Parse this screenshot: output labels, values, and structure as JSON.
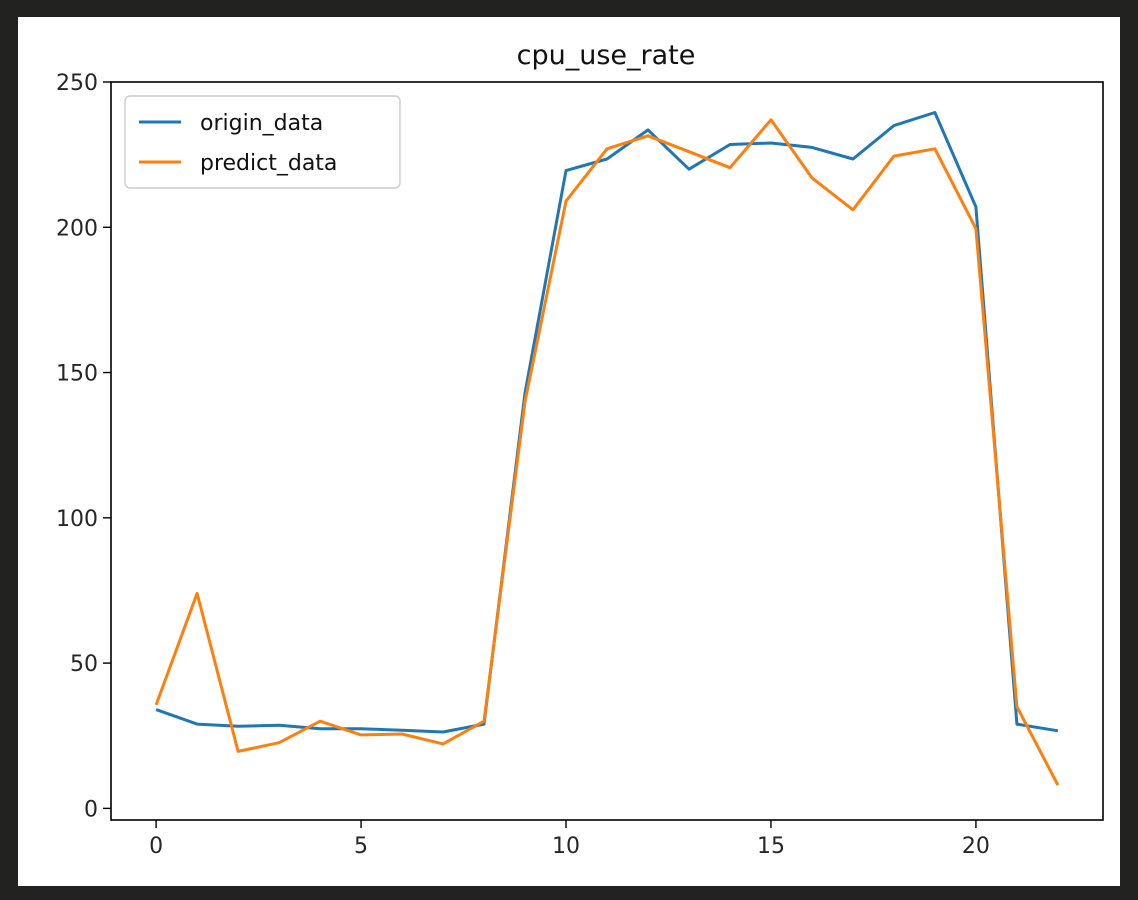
{
  "chart_data": {
    "type": "line",
    "title": "cpu_use_rate",
    "xlabel": "",
    "ylabel": "",
    "x": [
      0,
      1,
      2,
      3,
      4,
      5,
      6,
      7,
      8,
      9,
      10,
      11,
      12,
      13,
      14,
      15,
      16,
      17,
      18,
      19,
      20,
      21,
      22
    ],
    "xlim": [
      -1.1,
      23.1
    ],
    "ylim": [
      -4,
      250
    ],
    "xticks": [
      0,
      5,
      10,
      15,
      20
    ],
    "yticks": [
      0,
      50,
      100,
      150,
      200,
      250
    ],
    "grid": false,
    "legend_position": "top-left",
    "series": [
      {
        "name": "origin_data",
        "color": "#1f77b4",
        "values": [
          34,
          29,
          28.3,
          28.6,
          27.4,
          27.4,
          26.9,
          26.3,
          29,
          143,
          219.5,
          223.5,
          233.5,
          220,
          228.5,
          229,
          227.5,
          223.5,
          235,
          239.5,
          207,
          29,
          26.7
        ]
      },
      {
        "name": "predict_data",
        "color": "#ff7f0e",
        "values": [
          35.6,
          74,
          19.6,
          22.6,
          30,
          25.3,
          25.6,
          22.2,
          30,
          140,
          209,
          227,
          231.5,
          226,
          220.5,
          237,
          217,
          206,
          224.5,
          227,
          199.5,
          35,
          8
        ]
      }
    ]
  }
}
